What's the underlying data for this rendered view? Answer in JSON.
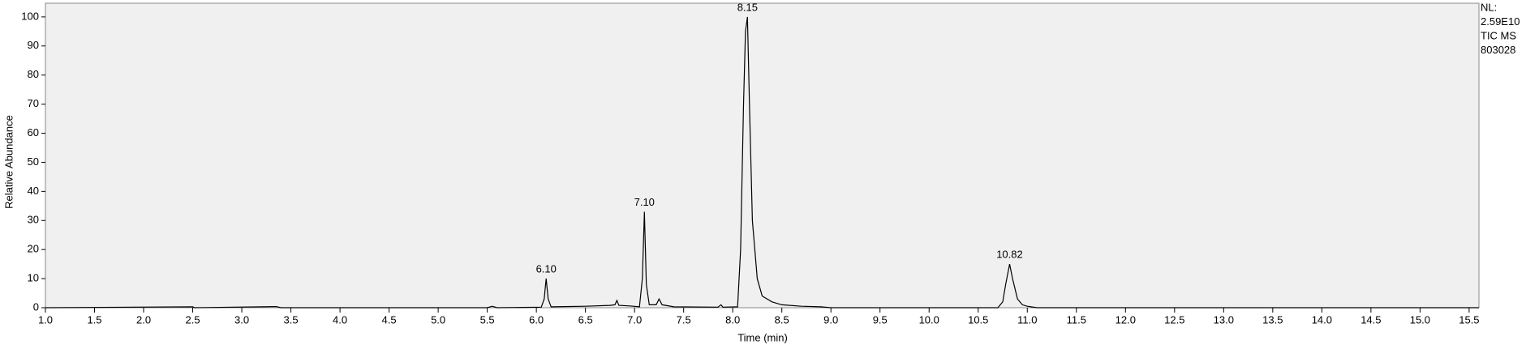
{
  "chart_data": {
    "type": "line",
    "x_label": "Time (min)",
    "y_label": "Relative Abundance",
    "side_info": [
      "NL:",
      "2.59E10",
      "TIC  MS",
      "803028"
    ],
    "xlim": [
      1.0,
      15.6
    ],
    "ylim": [
      0,
      104.7
    ],
    "xticks": [
      {
        "value": 1,
        "label": "1.0"
      },
      1.5,
      {
        "value": 2,
        "label": "2.0"
      },
      2.5,
      {
        "value": 3,
        "label": "3.0"
      },
      3.5,
      {
        "value": 4,
        "label": "4.0"
      },
      4.5,
      {
        "value": 5,
        "label": "5.0"
      },
      5.5,
      {
        "value": 6,
        "label": "6.0"
      },
      6.5,
      {
        "value": 7,
        "label": "7.0"
      },
      7.5,
      {
        "value": 8,
        "label": "8.0"
      },
      8.5,
      {
        "value": 9,
        "label": "9.0"
      },
      9.5,
      {
        "value": 10,
        "label": "10.0"
      },
      10.5,
      {
        "value": 11,
        "label": "11.0"
      },
      11.5,
      {
        "value": 12,
        "label": "12.0"
      },
      12.5,
      {
        "value": 13,
        "label": "13.0"
      },
      13.5,
      {
        "value": 14,
        "label": "14.0"
      },
      14.5,
      {
        "value": 15,
        "label": "15.0"
      },
      15.5
    ],
    "yticks": [
      0,
      10,
      20,
      30,
      40,
      50,
      60,
      70,
      80,
      90,
      100
    ],
    "series": [
      {
        "color": "#000000",
        "x": [
          1.0,
          2.5,
          2.52,
          3.2,
          3.35,
          3.4,
          5.5,
          5.55,
          5.6,
          6.05,
          6.08,
          6.1,
          6.12,
          6.15,
          6.5,
          6.75,
          6.8,
          6.82,
          6.84,
          6.95,
          7.05,
          7.08,
          7.1,
          7.12,
          7.15,
          7.22,
          7.25,
          7.28,
          7.4,
          7.85,
          7.88,
          7.9,
          8.05,
          8.08,
          8.11,
          8.13,
          8.15,
          8.17,
          8.2,
          8.25,
          8.3,
          8.4,
          8.5,
          8.7,
          8.9,
          9.0,
          10.7,
          10.75,
          10.78,
          10.82,
          10.85,
          10.9,
          10.95,
          11.0,
          11.1,
          15.6
        ],
        "values": [
          0,
          0.3,
          0,
          0.3,
          0.4,
          0,
          0,
          0.5,
          0,
          0.2,
          3,
          10,
          3,
          0.3,
          0.5,
          0.8,
          1,
          2.5,
          0.8,
          0.6,
          0.3,
          10,
          33,
          8,
          1,
          1,
          3,
          1,
          0.3,
          0.2,
          1,
          0.2,
          0.3,
          20,
          70,
          95,
          100,
          70,
          30,
          10,
          4,
          2,
          1,
          0.5,
          0.3,
          0,
          0,
          2,
          8,
          15,
          10,
          3,
          1,
          0.5,
          0,
          0
        ]
      }
    ],
    "annotations": [
      {
        "text": "6.10",
        "x": 6.1,
        "y": 10
      },
      {
        "text": "7.10",
        "x": 7.1,
        "y": 33
      },
      {
        "text": "8.15",
        "x": 8.15,
        "y": 100
      },
      {
        "text": "10.82",
        "x": 10.82,
        "y": 15
      }
    ]
  }
}
